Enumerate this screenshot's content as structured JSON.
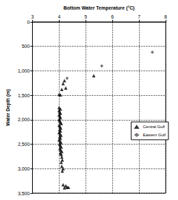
{
  "chart_data": {
    "type": "scatter",
    "x_label": "Bottom Water Temperature (°C)",
    "y_label": "Water Depth (m)",
    "xlim": [
      3,
      8
    ],
    "xticks": [
      3,
      4,
      5,
      6,
      7,
      8
    ],
    "ylim": [
      0,
      3500
    ],
    "yticks": [
      0,
      500,
      1000,
      1500,
      2000,
      2500,
      3000,
      3500
    ],
    "grid": true,
    "legend": "right",
    "series": [
      {
        "name": "Central Gulf",
        "color": "#000000",
        "marker": "triangle",
        "x": [
          4.2,
          4.15,
          4.25,
          4.1,
          4.0,
          4.05,
          5.3,
          4.0,
          4.05,
          4.0,
          4.02,
          4.05,
          4.0,
          4.03,
          4.05,
          4.0,
          4.02,
          4.05,
          4.08,
          4.0,
          4.03,
          4.06,
          4.02,
          4.05,
          4.0,
          4.04,
          4.07,
          4.02,
          4.05,
          4.0,
          4.04,
          4.07,
          4.02,
          4.05,
          4.08,
          4.03,
          4.06,
          4.1,
          4.05,
          4.08,
          4.1,
          4.12,
          4.08,
          4.1,
          4.15,
          4.12,
          4.15,
          4.25,
          4.3,
          4.2,
          4.35
        ],
        "values": [
          1200,
          1260,
          1350,
          1380,
          1480,
          1490,
          1100,
          1750,
          1780,
          1810,
          1840,
          1870,
          1900,
          1930,
          1960,
          1990,
          2020,
          2050,
          2080,
          2110,
          2140,
          2170,
          2200,
          2230,
          2260,
          2290,
          2320,
          2350,
          2380,
          2410,
          2440,
          2470,
          2500,
          2530,
          2560,
          2590,
          2620,
          2650,
          2680,
          2710,
          2760,
          2820,
          2870,
          2950,
          3000,
          3050,
          3330,
          3350,
          3380,
          3390,
          3380
        ]
      },
      {
        "name": "Eastern Gulf",
        "color": "#555555",
        "marker": "diamond",
        "x": [
          7.5,
          5.6,
          4.3
        ],
        "values": [
          620,
          900,
          1150
        ]
      }
    ]
  }
}
